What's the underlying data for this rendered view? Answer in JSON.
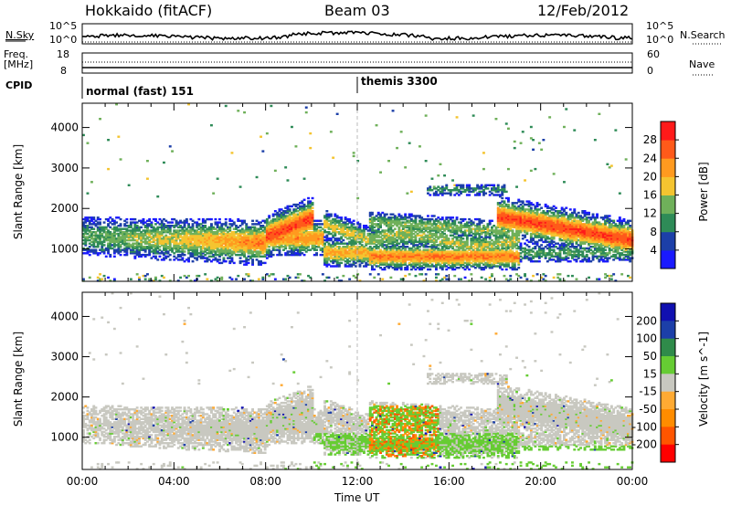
{
  "header": {
    "site": "Hokkaido (fitACF)",
    "beam": "Beam 03",
    "date": "12/Feb/2012"
  },
  "strip": {
    "nsky_label": "N.Sky",
    "nsky_top_tick": "10^5",
    "nsky_bottom_tick": "10^0",
    "nsearch_label": "N.Search",
    "nsearch_top_tick": "10^5",
    "nsearch_bottom_tick": "10^0",
    "freq_label_line1": "Freq.",
    "freq_label_line2": "[MHz]",
    "freq_top_tick": "18",
    "freq_bottom_tick": "8",
    "nave_label": "Nave",
    "nave_top_tick": "60",
    "nave_bottom_tick": "0",
    "cpid_label": "CPID",
    "cpid_segments": [
      {
        "label": "normal (fast) 151",
        "start_hour": 0
      },
      {
        "label": "themis 3300",
        "start_hour": 12
      }
    ]
  },
  "colors": {
    "power": [
      "#1a1aff",
      "#1c3fa8",
      "#2e8b57",
      "#6fb05a",
      "#f4c430",
      "#ff9a1f",
      "#ff5a1a",
      "#ff1a1a"
    ],
    "velocity": [
      "#ff0000",
      "#ff5500",
      "#ff8c00",
      "#ffaa33",
      "#c8c8c0",
      "#66cc33",
      "#2f8b4a",
      "#1c3fa8",
      "#1010b0"
    ]
  },
  "chart_data": [
    {
      "type": "heatmap",
      "title": "Power",
      "ylabel": "Slant Range [km]",
      "xlabel": "Time UT",
      "x_ticks": [
        "00:00",
        "04:00",
        "08:00",
        "12:00",
        "16:00",
        "20:00",
        "00:00"
      ],
      "xlim_hours": [
        0,
        24
      ],
      "y_ticks": [
        "1000",
        "2000",
        "3000",
        "4000"
      ],
      "ylim": [
        200,
        4600
      ],
      "colorbar_label": "Power [dB]",
      "colorbar_ticks": [
        "4",
        "8",
        "12",
        "16",
        "20",
        "24",
        "28"
      ],
      "colorbar_range": [
        0,
        32
      ]
    },
    {
      "type": "heatmap",
      "title": "Velocity",
      "ylabel": "Slant Range [km]",
      "xlabel": "Time UT",
      "x_ticks": [
        "00:00",
        "04:00",
        "08:00",
        "12:00",
        "16:00",
        "20:00",
        "00:00"
      ],
      "xlim_hours": [
        0,
        24
      ],
      "y_ticks": [
        "1000",
        "2000",
        "3000",
        "4000"
      ],
      "ylim": [
        200,
        4600
      ],
      "colorbar_label": "Velocity [m s^-1]",
      "colorbar_ticks": [
        "200",
        "100",
        "50",
        "15",
        "-15",
        "-50",
        "-100",
        "-200"
      ]
    }
  ]
}
